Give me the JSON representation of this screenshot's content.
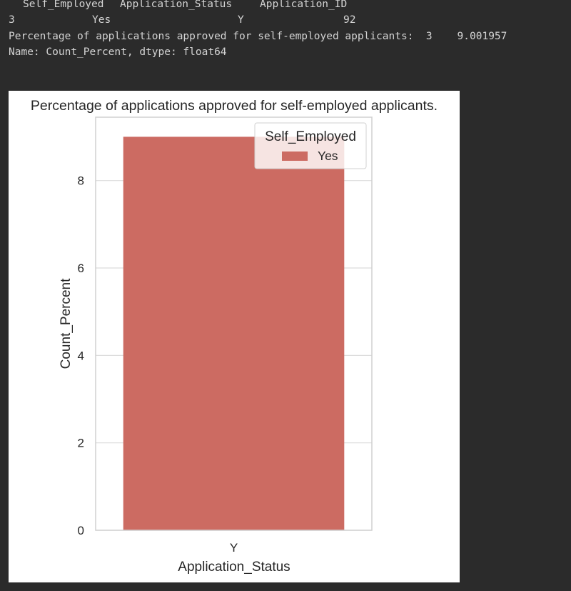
{
  "console": {
    "header": {
      "col1": "Self_Employed",
      "col2": "Application_Status",
      "col3": "Application_ID"
    },
    "row": {
      "index": "3",
      "self_employed": "Yes",
      "application_status": "Y",
      "application_id": "92"
    },
    "result_line": "Percentage of applications approved for self-employed applicants:  3    9.001957",
    "dtype_line": "Name: Count_Percent, dtype: float64"
  },
  "chart_data": {
    "type": "bar",
    "title": "Percentage of applications approved for self-employed applicants.",
    "xlabel": "Application_Status",
    "ylabel": "Count_Percent",
    "categories": [
      "Y"
    ],
    "series": [
      {
        "name": "Yes",
        "values": [
          9.001957
        ],
        "color": "#cc6b62"
      }
    ],
    "ylim": [
      0,
      9.45
    ],
    "yticks": [
      0,
      2,
      4,
      6,
      8
    ],
    "grid": true,
    "legend": {
      "title": "Self_Employed",
      "placement": "top-right"
    }
  }
}
